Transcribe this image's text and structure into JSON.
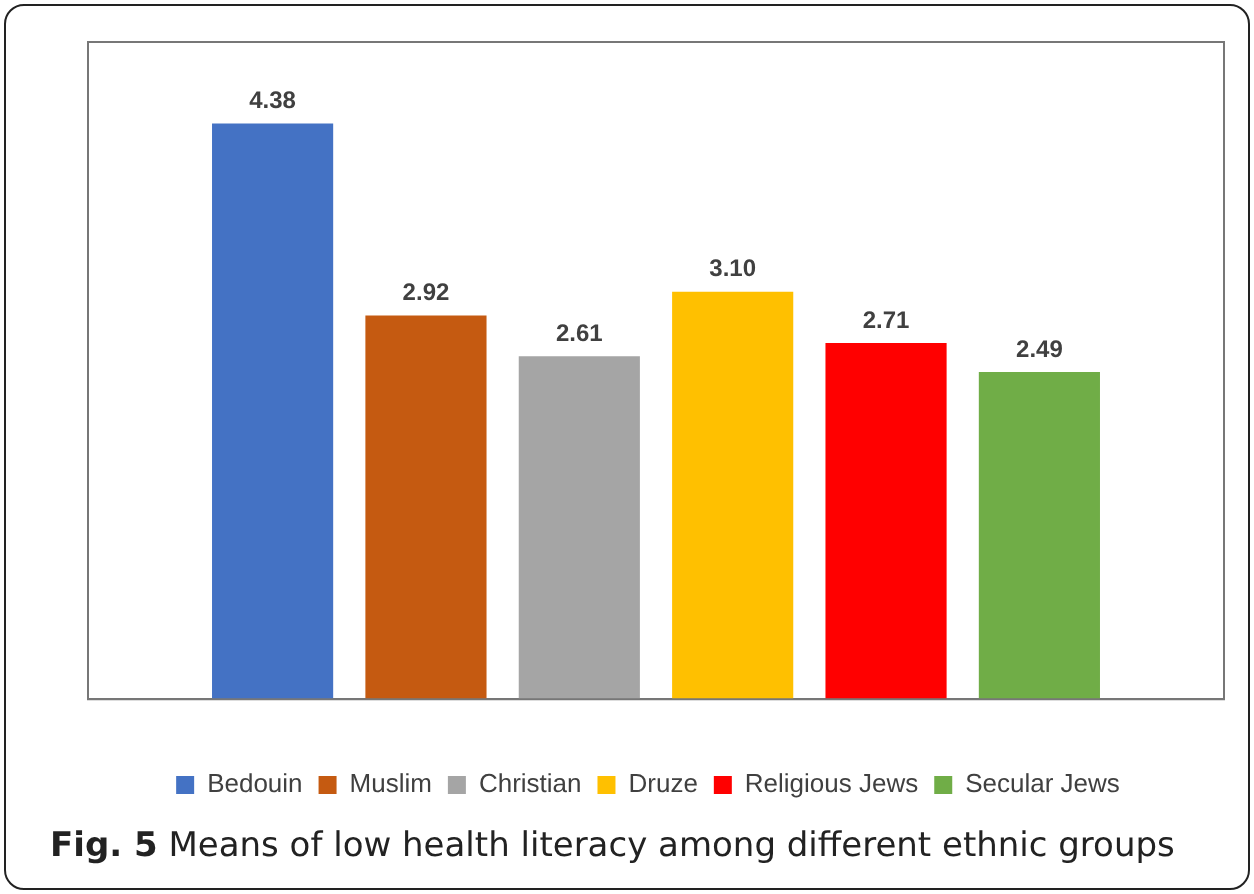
{
  "chart_data": {
    "type": "bar",
    "title": "Fig. 5 Means of low health literacy among different ethnic groups",
    "categories": [
      null
    ],
    "series": [
      {
        "name": "Bedouin",
        "color": "#4472c4",
        "values": [
          4.38
        ],
        "value_labels": [
          "4.38"
        ]
      },
      {
        "name": "Muslim",
        "color": "#c55a11",
        "values": [
          2.92
        ],
        "value_labels": [
          "2.92"
        ]
      },
      {
        "name": "Christian",
        "color": "#a5a5a5",
        "values": [
          2.61
        ],
        "value_labels": [
          "2.61"
        ]
      },
      {
        "name": "Druze",
        "color": "#ffc000",
        "values": [
          3.1
        ],
        "value_labels": [
          "3.10"
        ]
      },
      {
        "name": "Religious Jews",
        "color": "#ff0000",
        "values": [
          2.71
        ],
        "value_labels": [
          "2.71"
        ]
      },
      {
        "name": "Secular Jews",
        "color": "#70ad47",
        "values": [
          2.49
        ],
        "value_labels": [
          "2.49"
        ]
      }
    ],
    "ylim": [
      0,
      5
    ],
    "grid": false,
    "legend": "bottom"
  }
}
